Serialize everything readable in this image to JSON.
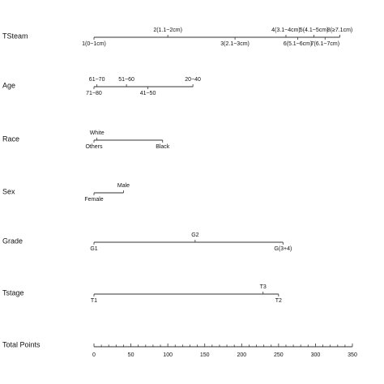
{
  "chart_data": {
    "type": "nomogram",
    "points_axis": {
      "label": "Total Points",
      "range": [
        0,
        350
      ],
      "major_ticks": [
        0,
        50,
        100,
        150,
        200,
        250,
        300,
        350
      ],
      "minor_step": 10
    },
    "variables": [
      {
        "name": "TSteam",
        "levels": [
          {
            "label": "1(0~1cm)",
            "points": 0,
            "side": "below"
          },
          {
            "label": "2(1.1~2cm)",
            "points": 100,
            "side": "above"
          },
          {
            "label": "3(2.1~3cm)",
            "points": 191,
            "side": "below"
          },
          {
            "label": "4(3.1~4cm)",
            "points": 260,
            "side": "above"
          },
          {
            "label": "5(4.1~5cm)",
            "points": 298,
            "side": "above"
          },
          {
            "label": "6(5.1~6cm)",
            "points": 276,
            "side": "below"
          },
          {
            "label": "7(6.1~7cm)",
            "points": 313,
            "side": "below"
          },
          {
            "label": "8(≥7.1cm)",
            "points": 333,
            "side": "above"
          }
        ]
      },
      {
        "name": "Age",
        "levels": [
          {
            "label": "61~70",
            "points": 4,
            "side": "above"
          },
          {
            "label": "71~80",
            "points": 0,
            "side": "below"
          },
          {
            "label": "51~60",
            "points": 44,
            "side": "above"
          },
          {
            "label": "41~50",
            "points": 73,
            "side": "below"
          },
          {
            "label": "20~40",
            "points": 134,
            "side": "above"
          }
        ]
      },
      {
        "name": "Race",
        "levels": [
          {
            "label": "White",
            "points": 4,
            "side": "above"
          },
          {
            "label": "Others",
            "points": 0,
            "side": "below"
          },
          {
            "label": "Black",
            "points": 93,
            "side": "below"
          }
        ]
      },
      {
        "name": "Sex",
        "levels": [
          {
            "label": "Male",
            "points": 40,
            "side": "above"
          },
          {
            "label": "Female",
            "points": 0,
            "side": "below"
          }
        ]
      },
      {
        "name": "Grade",
        "levels": [
          {
            "label": "G2",
            "points": 137,
            "side": "above"
          },
          {
            "label": "G1",
            "points": 0,
            "side": "below"
          },
          {
            "label": "G(3+4)",
            "points": 256,
            "side": "below"
          }
        ]
      },
      {
        "name": "Tstage",
        "levels": [
          {
            "label": "T3",
            "points": 229,
            "side": "above"
          },
          {
            "label": "T1",
            "points": 0,
            "side": "below"
          },
          {
            "label": "T2",
            "points": 250,
            "side": "below"
          }
        ]
      }
    ]
  }
}
